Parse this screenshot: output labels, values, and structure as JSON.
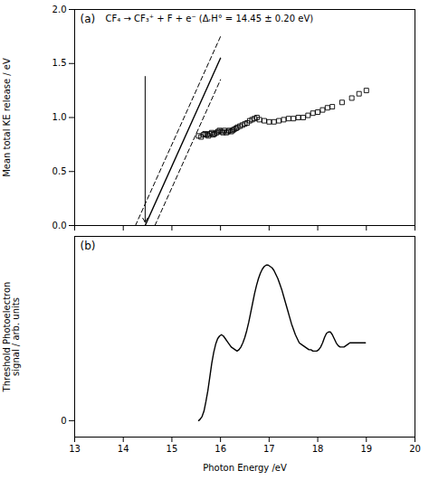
{
  "chart_data": [
    {
      "type": "line",
      "annotations": [
        {
          "text": "(a)"
        },
        {
          "text": "CF₄ → CF₃⁺ + F + e⁻ (ΔᵣH° = 14.45 ± 0.20 eV)"
        },
        {
          "type": "arrow",
          "x": 14.45,
          "y_start": 1.38,
          "y_end": 0.03
        }
      ],
      "ylabel": "Mean total KE release / eV",
      "xlim": [
        13,
        20
      ],
      "ylim": [
        0.0,
        2.0
      ],
      "xticks": [
        13,
        14,
        15,
        16,
        17,
        18,
        19,
        20
      ],
      "yticks": [
        {
          "value": 0,
          "label": "0.0"
        },
        {
          "value": 0.5,
          "label": "0.5"
        },
        {
          "value": 1,
          "label": "1.0"
        },
        {
          "value": 1.5,
          "label": "1.5"
        },
        {
          "value": 2,
          "label": "2.0"
        }
      ],
      "tick_labels": "y",
      "grid": false,
      "series": [
        {
          "x": [
            14.45,
            16.0
          ],
          "values": [
            0.0,
            1.55
          ],
          "color": "#000000",
          "line_style": "solid"
        },
        {
          "x": [
            14.25,
            16.0
          ],
          "values": [
            0.0,
            1.75
          ],
          "color": "#000000",
          "line_style": "dashed"
        },
        {
          "x": [
            14.65,
            16.0
          ],
          "values": [
            0.0,
            1.35
          ],
          "color": "#000000",
          "line_style": "dashed"
        },
        {
          "type": "scatter",
          "marker": "square",
          "color": "#000000",
          "x": [
            15.55,
            15.6,
            15.65,
            15.68,
            15.72,
            15.75,
            15.78,
            15.82,
            15.85,
            15.88,
            15.92,
            15.95,
            15.98,
            16.02,
            16.05,
            16.08,
            16.12,
            16.15,
            16.18,
            16.22,
            16.25,
            16.28,
            16.32,
            16.35,
            16.4,
            16.45,
            16.5,
            16.55,
            16.6,
            16.65,
            16.7,
            16.75,
            16.8,
            16.9,
            17.0,
            17.1,
            17.2,
            17.3,
            17.4,
            17.5,
            17.6,
            17.7,
            17.8,
            17.9,
            18.0,
            18.1,
            18.2,
            18.3,
            18.5,
            18.7,
            18.85,
            19.0
          ],
          "values": [
            0.83,
            0.82,
            0.84,
            0.85,
            0.84,
            0.83,
            0.85,
            0.86,
            0.84,
            0.85,
            0.86,
            0.87,
            0.88,
            0.87,
            0.86,
            0.88,
            0.86,
            0.87,
            0.88,
            0.87,
            0.88,
            0.89,
            0.9,
            0.91,
            0.92,
            0.93,
            0.94,
            0.95,
            0.97,
            0.98,
            0.99,
            1.0,
            0.98,
            0.97,
            0.96,
            0.96,
            0.97,
            0.98,
            0.99,
            0.99,
            1.0,
            1.0,
            1.02,
            1.04,
            1.05,
            1.07,
            1.09,
            1.1,
            1.14,
            1.18,
            1.22,
            1.25
          ]
        }
      ]
    },
    {
      "type": "line",
      "annotations": [
        {
          "text": "(b)"
        }
      ],
      "xlabel": "Photon Energy /eV",
      "ylabel": "Threshold Photoelectron\nsignal / arb. units",
      "xlim": [
        13,
        20
      ],
      "ylim": [
        -0.12,
        1.35
      ],
      "xticks": [
        13,
        14,
        15,
        16,
        17,
        18,
        19,
        20
      ],
      "yticks": [
        0
      ],
      "grid": false,
      "series": [
        {
          "color": "#000000",
          "line_style": "solid",
          "x": [
            15.55,
            15.58,
            15.62,
            15.66,
            15.7,
            15.74,
            15.78,
            15.82,
            15.86,
            15.9,
            15.94,
            15.98,
            16.02,
            16.06,
            16.1,
            16.14,
            16.18,
            16.22,
            16.26,
            16.3,
            16.34,
            16.38,
            16.42,
            16.46,
            16.5,
            16.54,
            16.58,
            16.62,
            16.66,
            16.7,
            16.74,
            16.78,
            16.82,
            16.86,
            16.9,
            16.94,
            16.98,
            17.02,
            17.06,
            17.1,
            17.14,
            17.18,
            17.22,
            17.26,
            17.3,
            17.34,
            17.38,
            17.42,
            17.46,
            17.5,
            17.54,
            17.58,
            17.62,
            17.66,
            17.7,
            17.74,
            17.78,
            17.82,
            17.86,
            17.9,
            17.94,
            17.98,
            18.02,
            18.06,
            18.1,
            18.14,
            18.18,
            18.22,
            18.26,
            18.3,
            18.34,
            18.38,
            18.42,
            18.46,
            18.5,
            18.54,
            18.58,
            18.62,
            18.66,
            18.7,
            18.74,
            18.78,
            18.82,
            18.86,
            18.9,
            18.94,
            18.98
          ],
          "values": [
            0.0,
            0.01,
            0.03,
            0.07,
            0.14,
            0.22,
            0.32,
            0.42,
            0.5,
            0.56,
            0.6,
            0.62,
            0.63,
            0.62,
            0.6,
            0.58,
            0.56,
            0.54,
            0.53,
            0.52,
            0.51,
            0.52,
            0.54,
            0.57,
            0.61,
            0.66,
            0.72,
            0.79,
            0.86,
            0.93,
            0.99,
            1.04,
            1.08,
            1.11,
            1.13,
            1.14,
            1.14,
            1.13,
            1.12,
            1.1,
            1.07,
            1.04,
            1.0,
            0.96,
            0.91,
            0.86,
            0.81,
            0.76,
            0.71,
            0.67,
            0.63,
            0.6,
            0.57,
            0.56,
            0.55,
            0.54,
            0.53,
            0.52,
            0.52,
            0.51,
            0.51,
            0.51,
            0.52,
            0.54,
            0.57,
            0.61,
            0.64,
            0.65,
            0.65,
            0.63,
            0.6,
            0.57,
            0.55,
            0.54,
            0.54,
            0.54,
            0.55,
            0.56,
            0.57,
            0.57,
            0.57,
            0.57,
            0.57,
            0.57,
            0.57,
            0.57,
            0.57
          ]
        }
      ]
    }
  ]
}
